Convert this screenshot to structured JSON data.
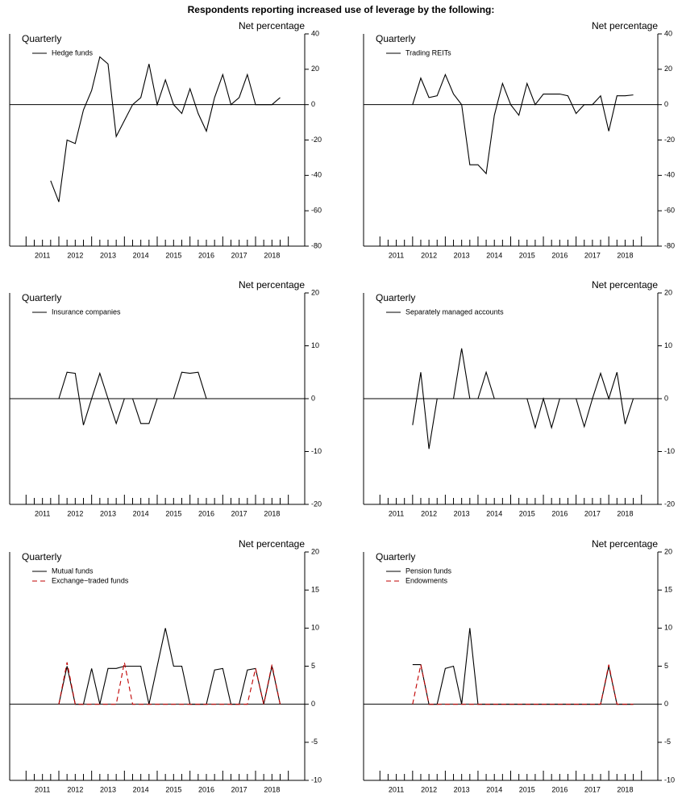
{
  "title": "Respondents reporting increased use of leverage by the following:",
  "chart_data": [
    {
      "type": "line",
      "frequency": "Quarterly",
      "y_axis_title": "Net percentage",
      "zero_line": true,
      "xlim": [
        2010.5,
        2019.5
      ],
      "ylim": [
        -80,
        40
      ],
      "yticks": [
        -80,
        -60,
        -40,
        -20,
        0,
        20,
        40
      ],
      "xticks": [
        {
          "value": 2011.5,
          "label": "2011"
        },
        {
          "value": 2012.5,
          "label": "2012"
        },
        {
          "value": 2013.5,
          "label": "2013"
        },
        {
          "value": 2014.5,
          "label": "2014"
        },
        {
          "value": 2015.5,
          "label": "2015"
        },
        {
          "value": 2016.5,
          "label": "2016"
        },
        {
          "value": 2017.5,
          "label": "2017"
        },
        {
          "value": 2018.5,
          "label": "2018"
        }
      ],
      "x": [
        2011.75,
        2012,
        2012.25,
        2012.5,
        2012.75,
        2013,
        2013.25,
        2013.5,
        2013.75,
        2014,
        2014.25,
        2014.5,
        2014.75,
        2015,
        2015.25,
        2015.5,
        2015.75,
        2016,
        2016.25,
        2016.5,
        2016.75,
        2017,
        2017.25,
        2017.5,
        2017.75,
        2018,
        2018.25,
        2018.5,
        2018.75
      ],
      "series": [
        {
          "name": "Hedge funds",
          "color": "#000000",
          "dash": "solid",
          "values": [
            -43,
            -55,
            -20,
            -22,
            -3,
            8,
            27,
            23,
            -18,
            -9,
            0,
            4,
            23,
            0,
            14,
            0,
            -5,
            9,
            -5,
            -15,
            4,
            17,
            0,
            4,
            17,
            0,
            0,
            0,
            4
          ]
        }
      ]
    },
    {
      "type": "line",
      "frequency": "Quarterly",
      "y_axis_title": "Net percentage",
      "zero_line": true,
      "xlim": [
        2010.5,
        2019.5
      ],
      "ylim": [
        -80,
        40
      ],
      "yticks": [
        -80,
        -60,
        -40,
        -20,
        0,
        20,
        40
      ],
      "xticks": [
        {
          "value": 2011.5,
          "label": "2011"
        },
        {
          "value": 2012.5,
          "label": "2012"
        },
        {
          "value": 2013.5,
          "label": "2013"
        },
        {
          "value": 2014.5,
          "label": "2014"
        },
        {
          "value": 2015.5,
          "label": "2015"
        },
        {
          "value": 2016.5,
          "label": "2016"
        },
        {
          "value": 2017.5,
          "label": "2017"
        },
        {
          "value": 2018.5,
          "label": "2018"
        }
      ],
      "x": [
        2012,
        2012.25,
        2012.5,
        2012.75,
        2013,
        2013.25,
        2013.5,
        2013.75,
        2014,
        2014.25,
        2014.5,
        2014.75,
        2015,
        2015.25,
        2015.5,
        2015.75,
        2016,
        2016.25,
        2016.5,
        2016.75,
        2017,
        2017.25,
        2017.5,
        2017.75,
        2018,
        2018.25,
        2018.5,
        2018.75
      ],
      "series": [
        {
          "name": "Trading REITs",
          "color": "#000000",
          "dash": "solid",
          "values": [
            0,
            15,
            4,
            5,
            17,
            6,
            0,
            -34,
            -34,
            -39,
            -6,
            12,
            0,
            -6,
            12,
            0,
            6,
            6,
            6,
            5,
            -5,
            0,
            0,
            5,
            -15,
            5,
            5,
            5.5
          ]
        }
      ]
    },
    {
      "type": "line",
      "frequency": "Quarterly",
      "y_axis_title": "Net percentage",
      "zero_line": true,
      "xlim": [
        2010.5,
        2019.5
      ],
      "ylim": [
        -20,
        20
      ],
      "yticks": [
        -20,
        -10,
        0,
        10,
        20
      ],
      "xticks": [
        {
          "value": 2011.5,
          "label": "2011"
        },
        {
          "value": 2012.5,
          "label": "2012"
        },
        {
          "value": 2013.5,
          "label": "2013"
        },
        {
          "value": 2014.5,
          "label": "2014"
        },
        {
          "value": 2015.5,
          "label": "2015"
        },
        {
          "value": 2016.5,
          "label": "2016"
        },
        {
          "value": 2017.5,
          "label": "2017"
        },
        {
          "value": 2018.5,
          "label": "2018"
        }
      ],
      "x": [
        2012,
        2012.25,
        2012.5,
        2012.75,
        2013,
        2013.25,
        2013.5,
        2013.75,
        2014,
        2014.25,
        2014.5,
        2014.75,
        2015,
        2015.25,
        2015.5,
        2015.75,
        2016,
        2016.25,
        2016.5,
        2016.75,
        2017,
        2017.25,
        2017.5,
        2017.75,
        2018,
        2018.25,
        2018.5,
        2018.75
      ],
      "series": [
        {
          "name": "Insurance companies",
          "color": "#000000",
          "dash": "solid",
          "values": [
            0,
            5,
            4.8,
            -5,
            0,
            4.8,
            0,
            -4.7,
            0,
            0,
            -4.7,
            -4.7,
            0,
            0,
            0,
            5,
            4.8,
            5,
            0,
            0,
            0,
            0,
            0,
            0,
            0,
            0,
            0,
            0
          ]
        }
      ]
    },
    {
      "type": "line",
      "frequency": "Quarterly",
      "y_axis_title": "Net percentage",
      "zero_line": true,
      "xlim": [
        2010.5,
        2019.5
      ],
      "ylim": [
        -20,
        20
      ],
      "yticks": [
        -20,
        -10,
        0,
        10,
        20
      ],
      "xticks": [
        {
          "value": 2011.5,
          "label": "2011"
        },
        {
          "value": 2012.5,
          "label": "2012"
        },
        {
          "value": 2013.5,
          "label": "2013"
        },
        {
          "value": 2014.5,
          "label": "2014"
        },
        {
          "value": 2015.5,
          "label": "2015"
        },
        {
          "value": 2016.5,
          "label": "2016"
        },
        {
          "value": 2017.5,
          "label": "2017"
        },
        {
          "value": 2018.5,
          "label": "2018"
        }
      ],
      "x": [
        2012,
        2012.25,
        2012.5,
        2012.75,
        2013,
        2013.25,
        2013.5,
        2013.75,
        2014,
        2014.25,
        2014.5,
        2014.75,
        2015,
        2015.25,
        2015.5,
        2015.75,
        2016,
        2016.25,
        2016.5,
        2016.75,
        2017,
        2017.25,
        2017.5,
        2017.75,
        2018,
        2018.25,
        2018.5,
        2018.75
      ],
      "series": [
        {
          "name": "Separately managed accounts",
          "color": "#000000",
          "dash": "solid",
          "values": [
            -5,
            5,
            -9.5,
            0,
            0,
            0,
            9.5,
            0,
            0,
            5,
            0,
            0,
            0,
            0,
            0,
            -5.5,
            0,
            -5.5,
            0,
            0,
            0,
            -5.3,
            0,
            4.8,
            0,
            5,
            -4.8,
            0
          ]
        }
      ]
    },
    {
      "type": "line",
      "frequency": "Quarterly",
      "y_axis_title": "Net percentage",
      "zero_line": true,
      "xlim": [
        2010.5,
        2019.5
      ],
      "ylim": [
        -10,
        20
      ],
      "yticks": [
        -10,
        -5,
        0,
        5,
        10,
        15,
        20
      ],
      "xticks": [
        {
          "value": 2011.5,
          "label": "2011"
        },
        {
          "value": 2012.5,
          "label": "2012"
        },
        {
          "value": 2013.5,
          "label": "2013"
        },
        {
          "value": 2014.5,
          "label": "2014"
        },
        {
          "value": 2015.5,
          "label": "2015"
        },
        {
          "value": 2016.5,
          "label": "2016"
        },
        {
          "value": 2017.5,
          "label": "2017"
        },
        {
          "value": 2018.5,
          "label": "2018"
        }
      ],
      "x": [
        2012,
        2012.25,
        2012.5,
        2012.75,
        2013,
        2013.25,
        2013.5,
        2013.75,
        2014,
        2014.25,
        2014.5,
        2014.75,
        2015,
        2015.25,
        2015.5,
        2015.75,
        2016,
        2016.25,
        2016.5,
        2016.75,
        2017,
        2017.25,
        2017.5,
        2017.75,
        2018,
        2018.25,
        2018.5,
        2018.75
      ],
      "series": [
        {
          "name": "Mutual funds",
          "color": "#000000",
          "dash": "solid",
          "values": [
            0,
            5,
            0,
            0,
            4.7,
            0,
            4.7,
            4.7,
            5,
            5,
            5,
            0,
            5,
            10,
            5,
            5,
            0,
            0,
            0,
            4.5,
            4.7,
            0,
            0,
            4.5,
            4.7,
            0,
            5,
            0
          ]
        },
        {
          "name": "Exchange−traded funds",
          "color": "#c00000",
          "dash": "dashed",
          "values": [
            0,
            5.5,
            0,
            0,
            0,
            0,
            0,
            0,
            5.5,
            0,
            0,
            0,
            0,
            0,
            0,
            0,
            0,
            0,
            0,
            0,
            0,
            0,
            0,
            0,
            4.7,
            0,
            5.2,
            0
          ]
        }
      ]
    },
    {
      "type": "line",
      "frequency": "Quarterly",
      "y_axis_title": "Net percentage",
      "zero_line": true,
      "xlim": [
        2010.5,
        2019.5
      ],
      "ylim": [
        -10,
        20
      ],
      "yticks": [
        -10,
        -5,
        0,
        5,
        10,
        15,
        20
      ],
      "xticks": [
        {
          "value": 2011.5,
          "label": "2011"
        },
        {
          "value": 2012.5,
          "label": "2012"
        },
        {
          "value": 2013.5,
          "label": "2013"
        },
        {
          "value": 2014.5,
          "label": "2014"
        },
        {
          "value": 2015.5,
          "label": "2015"
        },
        {
          "value": 2016.5,
          "label": "2016"
        },
        {
          "value": 2017.5,
          "label": "2017"
        },
        {
          "value": 2018.5,
          "label": "2018"
        }
      ],
      "x": [
        2012,
        2012.25,
        2012.5,
        2012.75,
        2013,
        2013.25,
        2013.5,
        2013.75,
        2014,
        2014.25,
        2014.5,
        2014.75,
        2015,
        2015.25,
        2015.5,
        2015.75,
        2016,
        2016.25,
        2016.5,
        2016.75,
        2017,
        2017.25,
        2017.5,
        2017.75,
        2018,
        2018.25,
        2018.5,
        2018.75
      ],
      "series": [
        {
          "name": "Pension funds",
          "color": "#000000",
          "dash": "solid",
          "values": [
            5.2,
            5.2,
            0,
            0,
            4.7,
            5,
            0,
            10,
            0,
            0,
            0,
            0,
            0,
            0,
            0,
            0,
            0,
            0,
            0,
            0,
            0,
            0,
            0,
            0,
            5,
            0,
            0,
            0
          ]
        },
        {
          "name": "Endowments",
          "color": "#c00000",
          "dash": "dashed",
          "values": [
            0,
            5.2,
            0,
            0,
            0,
            0,
            0,
            0,
            0,
            0,
            0,
            0,
            0,
            0,
            0,
            0,
            0,
            0,
            0,
            0,
            0,
            0,
            0,
            0,
            5.2,
            0,
            0,
            0
          ]
        }
      ]
    }
  ]
}
